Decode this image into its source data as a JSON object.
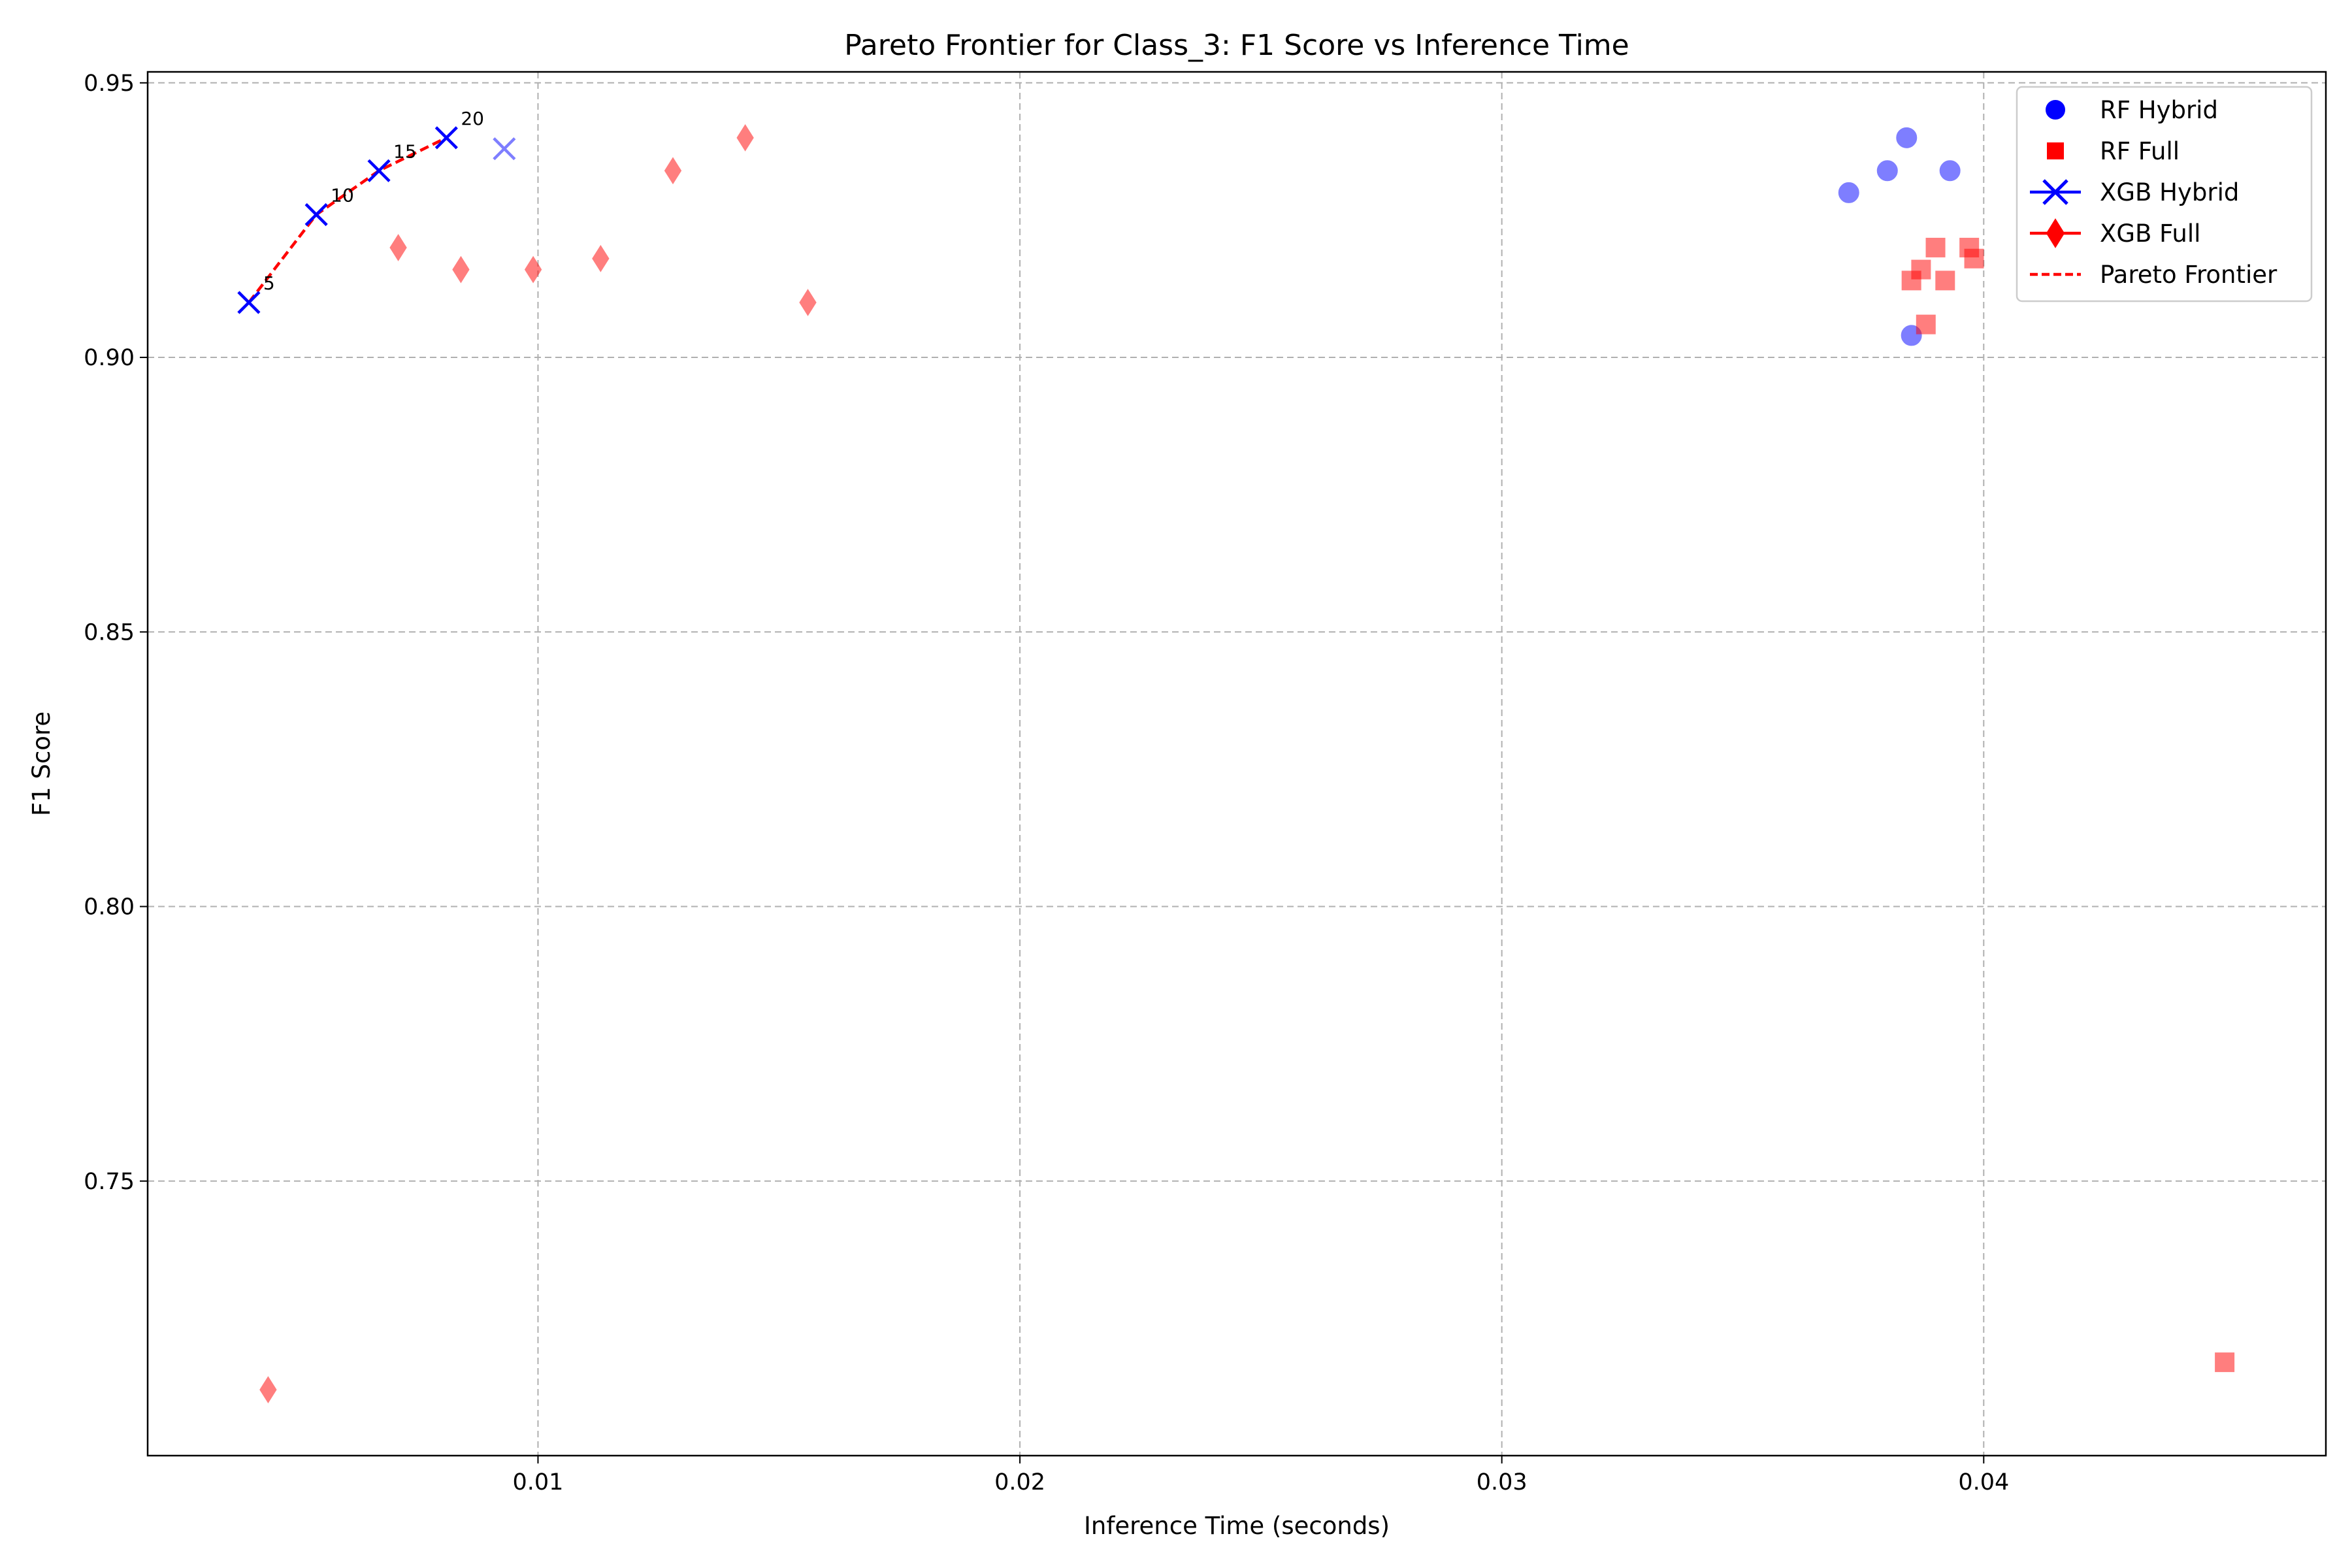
{
  "chart_data": {
    "type": "scatter",
    "title": "Pareto Frontier for Class_3: F1 Score vs Inference Time",
    "xlabel": "Inference Time (seconds)",
    "ylabel": "F1 Score",
    "xlim": [
      0.0019,
      0.0471
    ],
    "ylim": [
      0.7,
      0.952
    ],
    "xticks": [
      0.01,
      0.02,
      0.03,
      0.04
    ],
    "xtick_labels": [
      "0.01",
      "0.02",
      "0.03",
      "0.04"
    ],
    "yticks": [
      0.75,
      0.8,
      0.85,
      0.9,
      0.95
    ],
    "ytick_labels": [
      "0.75",
      "0.80",
      "0.85",
      "0.90",
      "0.95"
    ],
    "grid": true,
    "legend_position": "top-right",
    "series": [
      {
        "name": "RF Hybrid",
        "marker": "circle",
        "color": "#0000ff",
        "points": [
          [
            0.0372,
            0.93
          ],
          [
            0.038,
            0.934
          ],
          [
            0.0384,
            0.94
          ],
          [
            0.0393,
            0.934
          ],
          [
            0.0385,
            0.904
          ]
        ]
      },
      {
        "name": "RF Full",
        "marker": "square",
        "color": "#ff0000",
        "points": [
          [
            0.0385,
            0.914
          ],
          [
            0.0387,
            0.916
          ],
          [
            0.039,
            0.92
          ],
          [
            0.0392,
            0.914
          ],
          [
            0.0388,
            0.906
          ],
          [
            0.0397,
            0.92
          ],
          [
            0.0398,
            0.918
          ],
          [
            0.045,
            0.717
          ]
        ]
      },
      {
        "name": "XGB Hybrid",
        "marker": "x",
        "color": "#0000ff",
        "points": [
          [
            0.004,
            0.91
          ],
          [
            0.0054,
            0.926
          ],
          [
            0.0067,
            0.934
          ],
          [
            0.0081,
            0.94
          ],
          [
            0.0093,
            0.938
          ]
        ]
      },
      {
        "name": "XGB Full",
        "marker": "diamond",
        "color": "#ff0000",
        "points": [
          [
            0.0044,
            0.712
          ],
          [
            0.0071,
            0.92
          ],
          [
            0.0084,
            0.916
          ],
          [
            0.0099,
            0.916
          ],
          [
            0.0113,
            0.918
          ],
          [
            0.0128,
            0.934
          ],
          [
            0.0143,
            0.94
          ],
          [
            0.0156,
            0.91
          ]
        ]
      }
    ],
    "pareto_frontier": {
      "name": "Pareto Frontier",
      "color": "#ff0000",
      "points": [
        [
          0.004,
          0.91
        ],
        [
          0.0054,
          0.926
        ],
        [
          0.0067,
          0.934
        ],
        [
          0.0081,
          0.94
        ]
      ]
    },
    "annotations": [
      {
        "text": "5",
        "x": 0.004,
        "y": 0.91
      },
      {
        "text": "10",
        "x": 0.0054,
        "y": 0.926
      },
      {
        "text": "15",
        "x": 0.0067,
        "y": 0.934
      },
      {
        "text": "20",
        "x": 0.0081,
        "y": 0.94
      }
    ]
  }
}
